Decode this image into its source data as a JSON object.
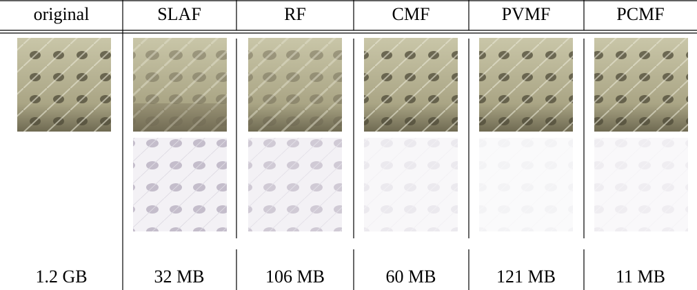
{
  "table": {
    "headers": [
      "original",
      "SLAF",
      "RF",
      "CMF",
      "PVMF",
      "PCMF"
    ],
    "sizes": [
      "1.2 GB",
      "32 MB",
      "106 MB",
      "60 MB",
      "121 MB",
      "11 MB"
    ]
  }
}
